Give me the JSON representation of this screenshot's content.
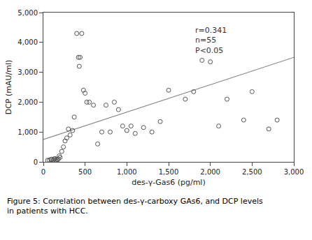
{
  "chart_data": {
    "type": "scatter",
    "xlabel": "des-γ-Gas6 (pg/ml)",
    "ylabel": "DCP (mAU/ml)",
    "annotation": "r=0.341\nn=55\nP<0.05",
    "caption": "Figure 5: Correlation between des-γ-carboxy GAs6, and DCP levels\nin patients with HCC.",
    "series": [
      {
        "type": "scatter",
        "marker": "circle-open",
        "color": "#555555",
        "x": [
          50,
          70,
          90,
          100,
          120,
          130,
          140,
          150,
          160,
          170,
          180,
          190,
          200,
          220,
          240,
          260,
          280,
          300,
          320,
          350,
          370,
          400,
          420,
          430,
          440,
          460,
          480,
          500,
          520,
          550,
          600,
          650,
          700,
          750,
          800,
          850,
          900,
          950,
          1000,
          1050,
          1100,
          1200,
          1300,
          1400,
          1500,
          1700,
          1800,
          1900,
          2000,
          2100,
          2200,
          2400,
          2500,
          2700,
          2800
        ],
        "values": [
          50,
          60,
          80,
          90,
          70,
          100,
          110,
          50,
          80,
          70,
          100,
          200,
          150,
          350,
          500,
          700,
          800,
          1100,
          900,
          1050,
          1500,
          4300,
          3500,
          3200,
          3500,
          4300,
          2400,
          2300,
          2000,
          2000,
          1900,
          600,
          1000,
          1900,
          1000,
          2000,
          1750,
          1200,
          1050,
          1200,
          950,
          1150,
          1000,
          1350,
          2400,
          2100,
          2350,
          3400,
          3350,
          1200,
          2100,
          1400,
          2350,
          1100,
          1400
        ]
      },
      {
        "type": "line",
        "line_style": "solid",
        "color": "#888888",
        "x": [
          0,
          3000
        ],
        "values": [
          750,
          3500
        ]
      }
    ],
    "xlim": [
      0,
      3000
    ],
    "ylim": [
      0,
      5000
    ],
    "xticks": [
      0,
      500,
      {
        "value": 1000,
        "label": "1,000"
      },
      {
        "value": 1500,
        "label": "1,500"
      },
      {
        "value": 2000,
        "label": "2,000"
      },
      {
        "value": 2500,
        "label": "2,500"
      },
      {
        "value": 3000,
        "label": "3,000"
      }
    ],
    "yticks": [
      0,
      {
        "value": 1000,
        "label": "1,000"
      },
      {
        "value": 2000,
        "label": "2,000"
      },
      {
        "value": 3000,
        "label": "3,000"
      },
      {
        "value": 4000,
        "label": "4,000"
      },
      {
        "value": 5000,
        "label": "5,000"
      }
    ],
    "grid": false
  }
}
